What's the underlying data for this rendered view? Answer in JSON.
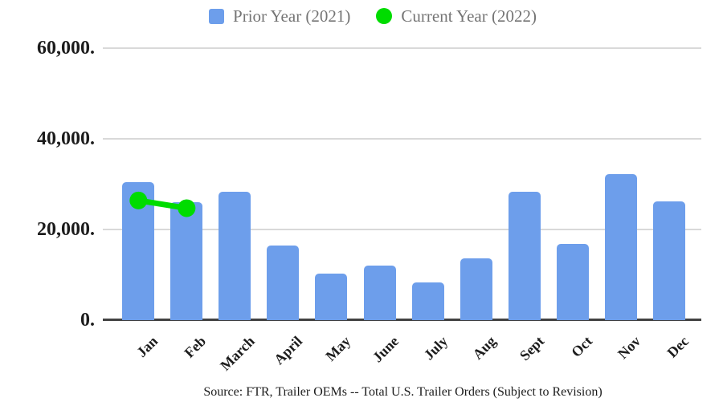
{
  "legend": {
    "items": [
      {
        "label": "Prior Year (2021)",
        "swatch": "square",
        "color": "#6d9eeb"
      },
      {
        "label": "Current Year (2022)",
        "swatch": "circle",
        "color": "#00dc00"
      }
    ]
  },
  "source_text": "Source: FTR, Trailer OEMs -- Total U.S. Trailer Orders (Subject to Revision)",
  "colors": {
    "bar_blue": "#6d9eeb",
    "line_green": "#00dc00",
    "legend_text": "#757575",
    "axis_text": "#1c1c1c",
    "gridline": "#d9d9d9",
    "axis_line": "#424242"
  },
  "chart_data": {
    "type": "bar",
    "title": "",
    "xlabel": "",
    "ylabel": "",
    "categories": [
      "Jan",
      "Feb",
      "March",
      "April",
      "May",
      "June",
      "July",
      "Aug",
      "Sept",
      "Oct",
      "Nov",
      "Dec"
    ],
    "series": [
      {
        "name": "Prior Year (2021)",
        "type": "bar",
        "color": "#6d9eeb",
        "values": [
          30400,
          26000,
          28300,
          16400,
          10200,
          12100,
          8400,
          13700,
          28300,
          16800,
          32200,
          26200
        ]
      },
      {
        "name": "Current Year (2022)",
        "type": "line",
        "color": "#00dc00",
        "values": [
          26400,
          24700,
          null,
          null,
          null,
          null,
          null,
          null,
          null,
          null,
          null,
          null
        ]
      }
    ],
    "ylim": [
      0,
      60000
    ],
    "yticks": [
      {
        "value": 0,
        "label": "0."
      },
      {
        "value": 20000,
        "label": "20,000."
      },
      {
        "value": 40000,
        "label": "40,000."
      },
      {
        "value": 60000,
        "label": "60,000."
      }
    ],
    "grid": true,
    "legend_position": "top"
  }
}
